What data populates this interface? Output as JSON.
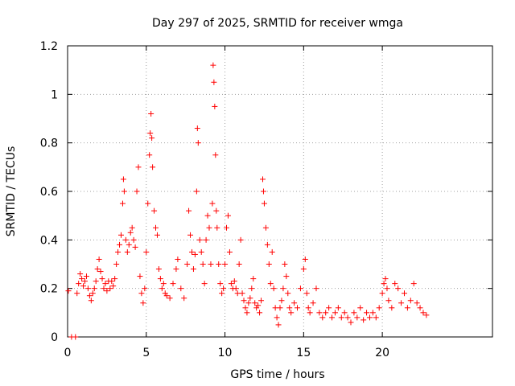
{
  "chart_data": {
    "type": "scatter",
    "title": "Day 297 of 2025, SRMTID for receiver wmga",
    "xlabel": "GPS time / hours",
    "ylabel": "SRMTID / TECUs",
    "xlim": [
      0,
      27
    ],
    "ylim": [
      0,
      1.2
    ],
    "xticks": [
      0,
      5,
      10,
      15,
      20
    ],
    "yticks": [
      0,
      0.2,
      0.4,
      0.6,
      0.8,
      1.0,
      1.2
    ],
    "xtick_labels": [
      "0",
      "5",
      "10",
      "15",
      "20"
    ],
    "ytick_labels": [
      "0",
      "0.2",
      "0.4",
      "0.6",
      "0.8",
      "1",
      "1.2"
    ],
    "grid": true,
    "marker": "+",
    "series": [
      {
        "name": "SRMTID",
        "color": "#ff0000",
        "points": [
          [
            0.05,
            0.19
          ],
          [
            0.25,
            0.0
          ],
          [
            0.5,
            0.0
          ],
          [
            0.6,
            0.18
          ],
          [
            0.7,
            0.22
          ],
          [
            0.8,
            0.26
          ],
          [
            0.9,
            0.24
          ],
          [
            1.0,
            0.21
          ],
          [
            1.1,
            0.23
          ],
          [
            1.2,
            0.25
          ],
          [
            1.3,
            0.2
          ],
          [
            1.4,
            0.17
          ],
          [
            1.5,
            0.15
          ],
          [
            1.6,
            0.18
          ],
          [
            1.7,
            0.2
          ],
          [
            1.8,
            0.23
          ],
          [
            1.9,
            0.28
          ],
          [
            2.0,
            0.32
          ],
          [
            2.1,
            0.27
          ],
          [
            2.2,
            0.24
          ],
          [
            2.3,
            0.2
          ],
          [
            2.4,
            0.22
          ],
          [
            2.5,
            0.19
          ],
          [
            2.6,
            0.23
          ],
          [
            2.7,
            0.2
          ],
          [
            2.8,
            0.23
          ],
          [
            2.9,
            0.21
          ],
          [
            3.0,
            0.24
          ],
          [
            3.1,
            0.3
          ],
          [
            3.2,
            0.35
          ],
          [
            3.3,
            0.38
          ],
          [
            3.4,
            0.42
          ],
          [
            3.5,
            0.55
          ],
          [
            3.55,
            0.65
          ],
          [
            3.6,
            0.6
          ],
          [
            3.7,
            0.4
          ],
          [
            3.8,
            0.35
          ],
          [
            3.9,
            0.38
          ],
          [
            4.0,
            0.43
          ],
          [
            4.1,
            0.45
          ],
          [
            4.2,
            0.4
          ],
          [
            4.3,
            0.37
          ],
          [
            4.4,
            0.6
          ],
          [
            4.5,
            0.7
          ],
          [
            4.6,
            0.25
          ],
          [
            4.7,
            0.18
          ],
          [
            4.8,
            0.14
          ],
          [
            4.9,
            0.2
          ],
          [
            5.0,
            0.35
          ],
          [
            5.1,
            0.55
          ],
          [
            5.2,
            0.75
          ],
          [
            5.25,
            0.84
          ],
          [
            5.3,
            0.92
          ],
          [
            5.35,
            0.82
          ],
          [
            5.4,
            0.7
          ],
          [
            5.5,
            0.52
          ],
          [
            5.6,
            0.45
          ],
          [
            5.7,
            0.42
          ],
          [
            5.8,
            0.28
          ],
          [
            5.9,
            0.24
          ],
          [
            6.0,
            0.2
          ],
          [
            6.1,
            0.22
          ],
          [
            6.2,
            0.18
          ],
          [
            6.3,
            0.17
          ],
          [
            6.5,
            0.16
          ],
          [
            6.7,
            0.22
          ],
          [
            6.9,
            0.28
          ],
          [
            7.0,
            0.32
          ],
          [
            7.2,
            0.2
          ],
          [
            7.4,
            0.16
          ],
          [
            7.6,
            0.3
          ],
          [
            7.7,
            0.52
          ],
          [
            7.8,
            0.42
          ],
          [
            7.9,
            0.35
          ],
          [
            8.0,
            0.28
          ],
          [
            8.1,
            0.34
          ],
          [
            8.2,
            0.6
          ],
          [
            8.25,
            0.86
          ],
          [
            8.3,
            0.8
          ],
          [
            8.4,
            0.4
          ],
          [
            8.5,
            0.35
          ],
          [
            8.6,
            0.3
          ],
          [
            8.7,
            0.22
          ],
          [
            8.8,
            0.4
          ],
          [
            8.9,
            0.5
          ],
          [
            9.0,
            0.45
          ],
          [
            9.1,
            0.3
          ],
          [
            9.2,
            0.55
          ],
          [
            9.25,
            1.12
          ],
          [
            9.3,
            1.05
          ],
          [
            9.35,
            0.95
          ],
          [
            9.4,
            0.75
          ],
          [
            9.45,
            0.52
          ],
          [
            9.5,
            0.45
          ],
          [
            9.6,
            0.3
          ],
          [
            9.7,
            0.22
          ],
          [
            9.8,
            0.18
          ],
          [
            9.9,
            0.2
          ],
          [
            10.0,
            0.3
          ],
          [
            10.1,
            0.45
          ],
          [
            10.2,
            0.5
          ],
          [
            10.3,
            0.35
          ],
          [
            10.4,
            0.22
          ],
          [
            10.5,
            0.2
          ],
          [
            10.6,
            0.23
          ],
          [
            10.7,
            0.2
          ],
          [
            10.8,
            0.18
          ],
          [
            10.9,
            0.3
          ],
          [
            11.0,
            0.4
          ],
          [
            11.1,
            0.18
          ],
          [
            11.2,
            0.15
          ],
          [
            11.3,
            0.12
          ],
          [
            11.4,
            0.1
          ],
          [
            11.5,
            0.14
          ],
          [
            11.6,
            0.16
          ],
          [
            11.7,
            0.2
          ],
          [
            11.8,
            0.24
          ],
          [
            11.9,
            0.14
          ],
          [
            12.0,
            0.12
          ],
          [
            12.1,
            0.13
          ],
          [
            12.2,
            0.1
          ],
          [
            12.3,
            0.15
          ],
          [
            12.4,
            0.65
          ],
          [
            12.45,
            0.6
          ],
          [
            12.5,
            0.55
          ],
          [
            12.6,
            0.45
          ],
          [
            12.7,
            0.38
          ],
          [
            12.8,
            0.3
          ],
          [
            12.9,
            0.22
          ],
          [
            13.0,
            0.35
          ],
          [
            13.1,
            0.2
          ],
          [
            13.2,
            0.12
          ],
          [
            13.3,
            0.08
          ],
          [
            13.4,
            0.05
          ],
          [
            13.5,
            0.12
          ],
          [
            13.6,
            0.15
          ],
          [
            13.7,
            0.2
          ],
          [
            13.8,
            0.3
          ],
          [
            13.9,
            0.25
          ],
          [
            14.0,
            0.18
          ],
          [
            14.1,
            0.12
          ],
          [
            14.2,
            0.1
          ],
          [
            14.4,
            0.14
          ],
          [
            14.6,
            0.12
          ],
          [
            14.8,
            0.2
          ],
          [
            15.0,
            0.28
          ],
          [
            15.1,
            0.32
          ],
          [
            15.2,
            0.18
          ],
          [
            15.3,
            0.12
          ],
          [
            15.4,
            0.1
          ],
          [
            15.6,
            0.14
          ],
          [
            15.8,
            0.2
          ],
          [
            16.0,
            0.1
          ],
          [
            16.2,
            0.08
          ],
          [
            16.4,
            0.1
          ],
          [
            16.6,
            0.12
          ],
          [
            16.8,
            0.08
          ],
          [
            17.0,
            0.1
          ],
          [
            17.2,
            0.12
          ],
          [
            17.4,
            0.08
          ],
          [
            17.6,
            0.1
          ],
          [
            17.8,
            0.08
          ],
          [
            18.0,
            0.06
          ],
          [
            18.2,
            0.1
          ],
          [
            18.4,
            0.08
          ],
          [
            18.6,
            0.12
          ],
          [
            18.8,
            0.07
          ],
          [
            19.0,
            0.1
          ],
          [
            19.2,
            0.08
          ],
          [
            19.4,
            0.1
          ],
          [
            19.6,
            0.08
          ],
          [
            19.8,
            0.12
          ],
          [
            20.0,
            0.18
          ],
          [
            20.1,
            0.22
          ],
          [
            20.2,
            0.24
          ],
          [
            20.3,
            0.2
          ],
          [
            20.4,
            0.15
          ],
          [
            20.6,
            0.12
          ],
          [
            20.8,
            0.22
          ],
          [
            21.0,
            0.2
          ],
          [
            21.2,
            0.14
          ],
          [
            21.4,
            0.18
          ],
          [
            21.6,
            0.12
          ],
          [
            21.8,
            0.15
          ],
          [
            22.0,
            0.22
          ],
          [
            22.2,
            0.14
          ],
          [
            22.4,
            0.12
          ],
          [
            22.6,
            0.1
          ],
          [
            22.8,
            0.09
          ]
        ]
      }
    ]
  }
}
